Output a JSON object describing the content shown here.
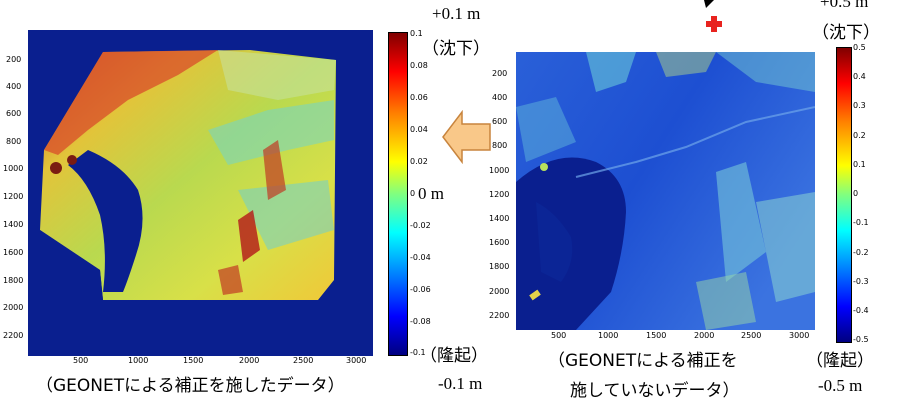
{
  "left_panel": {
    "y_ticks": [
      "200",
      "400",
      "600",
      "800",
      "1000",
      "1200",
      "1400",
      "1600",
      "1800",
      "2000",
      "2200"
    ],
    "x_ticks": [
      "500",
      "1000",
      "1500",
      "2000",
      "2500",
      "3000"
    ],
    "colorbar_ticks": [
      "0.1",
      "0.08",
      "0.06",
      "0.04",
      "0.02",
      "0",
      "-0.02",
      "-0.04",
      "-0.06",
      "-0.08",
      "-0.1"
    ],
    "top_value": "+0.1 m",
    "top_label": "（沈下）",
    "zero_label": "0 m",
    "bottom_label": "（隆起）",
    "bottom_value": "-0.1 m",
    "caption": "（GEONETによる補正を施したデータ）"
  },
  "right_panel": {
    "y_ticks": [
      "200",
      "400",
      "600",
      "800",
      "1000",
      "1200",
      "1400",
      "1600",
      "1800",
      "2000",
      "2200"
    ],
    "x_ticks": [
      "500",
      "1000",
      "1500",
      "2000",
      "2500",
      "3000"
    ],
    "colorbar_ticks": [
      "0.5",
      "0.4",
      "0.3",
      "0.2",
      "0.1",
      "0",
      "-0.1",
      "-0.2",
      "-0.3",
      "-0.4",
      "-0.5"
    ],
    "top_value": "+0.5 m",
    "top_label": "（沈下）",
    "bottom_label": "（隆起）",
    "bottom_value": "-0.5 m",
    "caption_line1": "（GEONETによる補正を",
    "caption_line2": "施していないデータ）"
  },
  "colors": {
    "background_blue": "#0a1f8f",
    "arrow_fill": "#f9c889",
    "arrow_stroke": "#c8843d",
    "marker_red": "#e8231f"
  }
}
